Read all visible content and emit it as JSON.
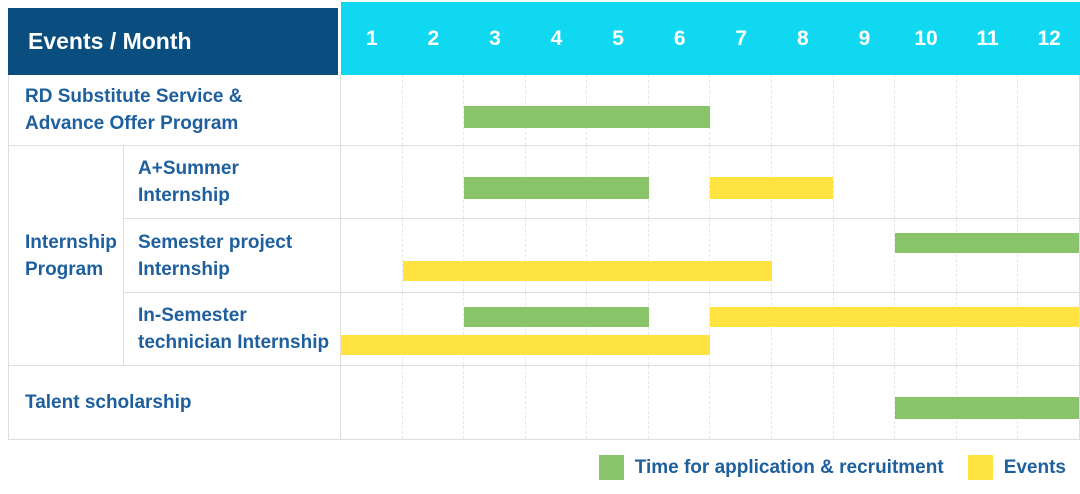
{
  "header": {
    "title": "Events / Month",
    "months": [
      "1",
      "2",
      "3",
      "4",
      "5",
      "6",
      "7",
      "8",
      "9",
      "10",
      "11",
      "12"
    ]
  },
  "labels": {
    "rd": "RD Substitute Service &\nAdvance Offer Program",
    "internship_group": "Internship\nProgram",
    "a_summer": "A+Summer\nInternship",
    "semester_project": "Semester project\nInternship",
    "in_semester": "In-Semester\ntechnician Internship",
    "talent": "Talent scholarship"
  },
  "legend": {
    "application": "Time for application & recruitment",
    "events": "Events"
  },
  "colors": {
    "dark_blue": "#0a4e80",
    "cyan": "#10d8f0",
    "green": "#8ac46a",
    "yellow": "#ffe340",
    "blue_text": "#1e5f9e",
    "grid": "#dedede",
    "grid_dash": "#e7e7e7"
  },
  "chart_data": {
    "type": "bar",
    "variant": "gantt",
    "x": [
      1,
      2,
      3,
      4,
      5,
      6,
      7,
      8,
      9,
      10,
      11,
      12
    ],
    "xlabel": "Month",
    "legend_entries": [
      {
        "color_key": "green",
        "label": "Time for application & recruitment"
      },
      {
        "color_key": "yellow",
        "label": "Events"
      }
    ],
    "rows": [
      {
        "group": "RD Substitute Service & Advance Offer Program",
        "sub": "",
        "bars": [
          {
            "color": "green",
            "start": 3,
            "end": 6,
            "lane": "center"
          }
        ]
      },
      {
        "group": "Internship Program",
        "sub": "A+Summer Internship",
        "bars": [
          {
            "color": "green",
            "start": 3,
            "end": 5,
            "lane": "center"
          },
          {
            "color": "yellow",
            "start": 7,
            "end": 8,
            "lane": "center"
          }
        ]
      },
      {
        "group": "Internship Program",
        "sub": "Semester project Internship",
        "bars": [
          {
            "color": "green",
            "start": 10,
            "end": 12,
            "lane": "top"
          },
          {
            "color": "yellow",
            "start": 2,
            "end": 7,
            "lane": "bottom"
          }
        ]
      },
      {
        "group": "Internship Program",
        "sub": "In-Semester technician Internship",
        "bars": [
          {
            "color": "green",
            "start": 3,
            "end": 5,
            "lane": "top"
          },
          {
            "color": "yellow",
            "start": 7,
            "end": 12,
            "lane": "top"
          },
          {
            "color": "yellow",
            "start": 1,
            "end": 6,
            "lane": "bottom"
          }
        ]
      },
      {
        "group": "Talent scholarship",
        "sub": "",
        "bars": [
          {
            "color": "green",
            "start": 10,
            "end": 12,
            "lane": "center"
          }
        ]
      }
    ]
  }
}
